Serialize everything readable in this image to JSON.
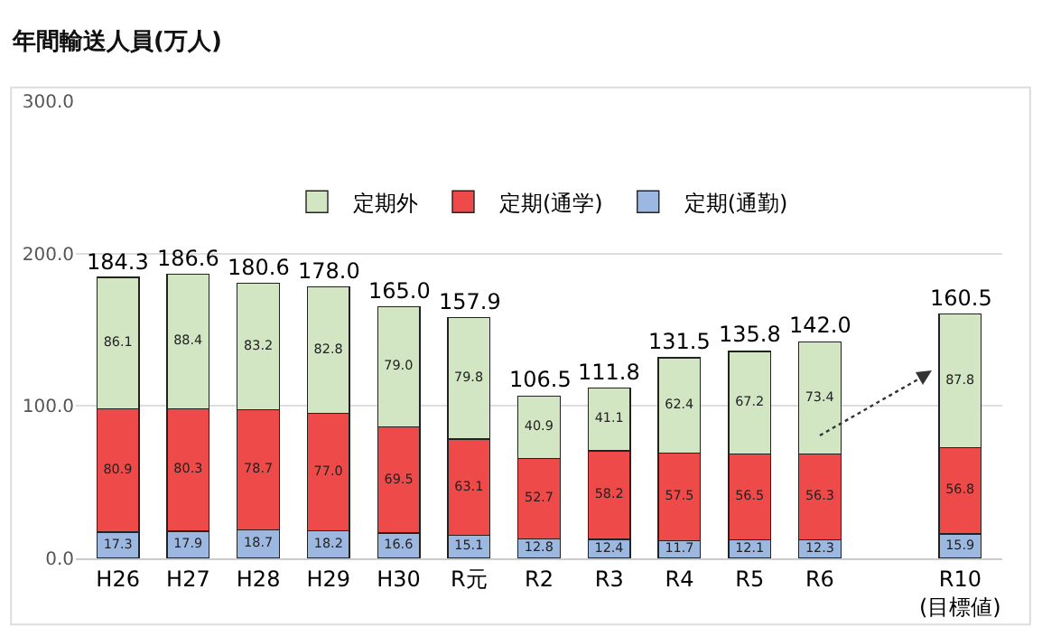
{
  "chart_data": {
    "type": "bar",
    "ylabel": "年間輸送人員(万人)",
    "categories": [
      "H26",
      "H27",
      "H28",
      "H29",
      "H30",
      "R元",
      "R2",
      "R3",
      "R4",
      "R5",
      "R6",
      null,
      "R10\n(目標値)"
    ],
    "stacked": true,
    "series": [
      {
        "name": "定期(通勤)",
        "color": "#9db8e0",
        "values": [
          17.3,
          17.9,
          18.7,
          18.2,
          16.6,
          15.1,
          12.8,
          12.4,
          11.7,
          12.1,
          12.3,
          null,
          15.9
        ],
        "value_labels": [
          "17.3",
          "17.9",
          "18.7",
          "18.2",
          "16.6",
          "15.1",
          "12.8",
          "12.4",
          "11.7",
          "12.1",
          "12.3",
          null,
          "15.9"
        ]
      },
      {
        "name": "定期(通学)",
        "color": "#ee4a4a",
        "values": [
          80.9,
          80.3,
          78.7,
          77.0,
          69.5,
          63.1,
          52.7,
          58.2,
          57.5,
          56.5,
          56.3,
          null,
          56.8
        ],
        "value_labels": [
          "80.9",
          "80.3",
          "78.7",
          "77.0",
          "69.5",
          "63.1",
          "52.7",
          "58.2",
          "57.5",
          "56.5",
          "56.3",
          null,
          "56.8"
        ]
      },
      {
        "name": "定期外",
        "color": "#d3e6c3",
        "values": [
          86.1,
          88.4,
          83.2,
          82.8,
          79.0,
          79.8,
          40.9,
          41.1,
          62.4,
          67.2,
          73.4,
          null,
          87.8
        ],
        "value_labels": [
          "86.1",
          "88.4",
          "83.2",
          "82.8",
          "79.0",
          "79.8",
          "40.9",
          "41.1",
          "62.4",
          "67.2",
          "73.4",
          null,
          "87.8"
        ]
      }
    ],
    "totals": [
      "184.3",
      "186.6",
      "180.6",
      "178.0",
      "165.0",
      "157.9",
      "106.5",
      "111.8",
      "131.5",
      "135.8",
      "142.0",
      null,
      "160.5"
    ],
    "ylim": [
      0,
      300
    ],
    "yticks": [
      {
        "value": 0,
        "label": "0.0"
      },
      {
        "value": 100,
        "label": "100.0"
      },
      {
        "value": 200,
        "label": "200.0"
      },
      {
        "value": 300,
        "label": "300.0"
      }
    ],
    "grid": "y",
    "legend": "top"
  }
}
